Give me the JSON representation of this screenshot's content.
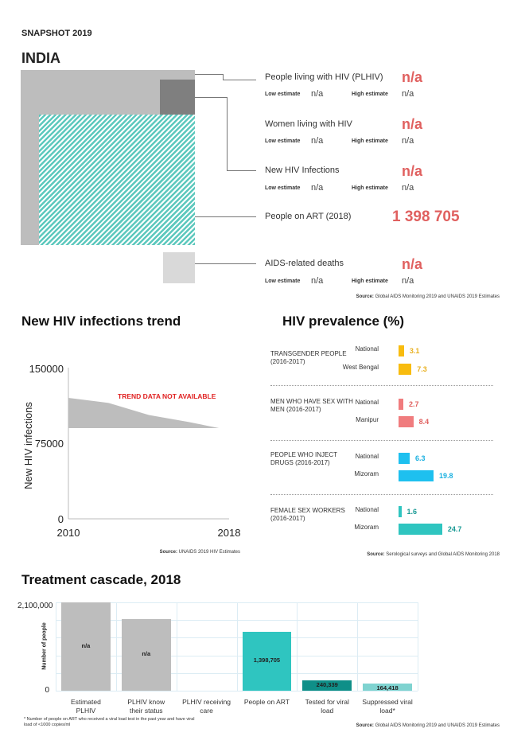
{
  "header": {
    "snapshot": "SNAPSHOT 2019",
    "country": "INDIA"
  },
  "colors": {
    "accent_red": "#e0605f",
    "teal": "#2fc5c0",
    "gray": "#bdbdbd",
    "dark_gray": "#7f7f7f",
    "light_gray": "#d9d9d9"
  },
  "snapshot": {
    "low_label": "Low estimate",
    "high_label": "High estimate",
    "items": [
      {
        "label": "People living with HIV (PLHIV)",
        "value": "n/a",
        "low": "n/a",
        "high": "n/a"
      },
      {
        "label": "Women living with HIV",
        "value": "n/a",
        "low": "n/a",
        "high": "n/a"
      },
      {
        "label": "New HIV Infections",
        "value": "n/a",
        "low": "n/a",
        "high": "n/a"
      },
      {
        "label": "People on ART (2018)",
        "value": "1 398 705"
      },
      {
        "label": "AIDS-related deaths",
        "value": "n/a",
        "low": "n/a",
        "high": "n/a"
      }
    ],
    "source_label": "Source:",
    "source": " Global AIDS Monitoring 2019 and UNAIDS 2019 Estimates"
  },
  "chart_data": [
    {
      "type": "area",
      "title": "New HIV infections trend",
      "ylabel": "New HIV infections",
      "x_ticks": [
        "2010",
        "2018"
      ],
      "y_ticks": [
        "150000",
        "75000",
        "0"
      ],
      "ylim": [
        0,
        150000
      ],
      "xlim": [
        2010,
        2018
      ],
      "annotation": "TREND DATA NOT AVAILABLE",
      "source_label": "Source:",
      "source": " UNAIDS 2019 HIV Estimates",
      "placeholder_upper": [
        [
          2010,
          120000
        ],
        [
          2012,
          115000
        ],
        [
          2014,
          103000
        ],
        [
          2016,
          96000
        ],
        [
          2017.5,
          90000
        ]
      ],
      "placeholder_lower": 90000
    },
    {
      "type": "bar",
      "title": "HIV prevalence (%)",
      "source_label": "Source:",
      "source": " Serological surveys and Global AIDS Monitoring 2018",
      "groups": [
        {
          "label": "TRANSGENDER PEOPLE (2016-2017)",
          "color": "#f8bc0f",
          "text_color": "#e8b020",
          "bars": [
            {
              "name": "National",
              "value": 3.1
            },
            {
              "name": "West Bengal",
              "value": 7.3
            }
          ]
        },
        {
          "label": "MEN WHO HAVE SEX WITH MEN (2016-2017)",
          "color": "#f07c7e",
          "text_color": "#e0605f",
          "bars": [
            {
              "name": "National",
              "value": 2.7
            },
            {
              "name": "Manipur",
              "value": 8.4
            }
          ]
        },
        {
          "label": "PEOPLE WHO INJECT DRUGS (2016-2017)",
          "color": "#1ec0ef",
          "text_color": "#1ab0e0",
          "bars": [
            {
              "name": "National",
              "value": 6.3
            },
            {
              "name": "Mizoram",
              "value": 19.8
            }
          ]
        },
        {
          "label": "FEMALE SEX WORKERS (2016-2017)",
          "color": "#2fc5c0",
          "text_color": "#1a9a95",
          "bars": [
            {
              "name": "National",
              "value": 1.6
            },
            {
              "name": "Mizoram",
              "value": 24.7
            }
          ]
        }
      ]
    },
    {
      "type": "bar",
      "title": "Treatment cascade, 2018",
      "ylabel": "Number of people",
      "y_ticks": [
        "2,100,000",
        "0"
      ],
      "ylim": [
        0,
        2100000
      ],
      "categories": [
        "Estimated PLHIV",
        "PLHIV know their status",
        "PLHIV receiving care",
        "People on ART",
        "Tested for viral load",
        "Suppressed viral load*"
      ],
      "values": [
        2100000,
        1700000,
        0,
        1398705,
        240339,
        164418
      ],
      "labels": [
        "n/a",
        "n/a",
        "",
        "1,398,705",
        "240,339",
        "164,418"
      ],
      "colors": [
        "#bdbdbd",
        "#bdbdbd",
        "#bdbdbd",
        "#2fc5c0",
        "#0f8f88",
        "#7fd3d0"
      ],
      "footnote": "* Number of people on ART who received a viral load test in the past year and have viral load of <1000 copies/ml",
      "source_label": "Source:",
      "source": " Global AIDS Monitoring 2019 and UNAIDS 2019 Estimates"
    }
  ]
}
